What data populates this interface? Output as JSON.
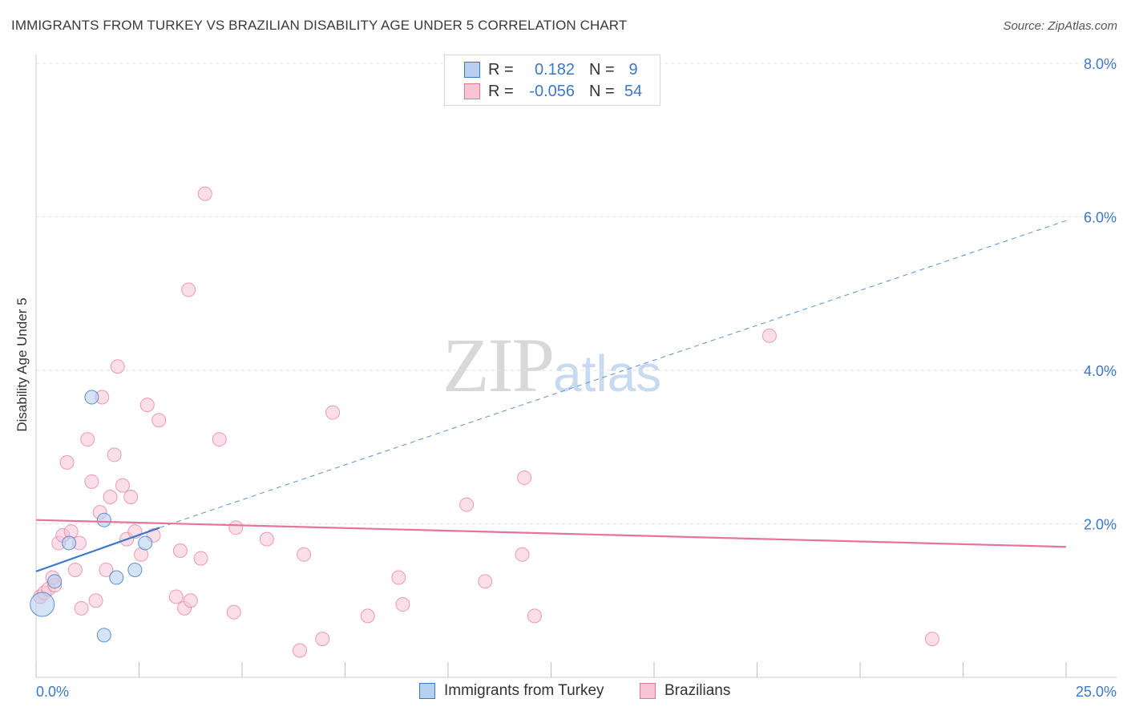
{
  "title": "IMMIGRANTS FROM TURKEY VS BRAZILIAN DISABILITY AGE UNDER 5 CORRELATION CHART",
  "source": "Source: ZipAtlas.com",
  "watermark": {
    "zip": "ZIP",
    "atlas": "atlas"
  },
  "colors": {
    "blue": "#3c78c8",
    "blue_fill": "#b8d0f0",
    "pink": "#e8739a",
    "pink_fill": "#f7c5d6",
    "tick_text": "#3c78c8"
  },
  "legend_top": {
    "rows": [
      {
        "r_label": "R =",
        "r_value": "0.182",
        "n_label": "N =",
        "n_value": "9"
      },
      {
        "r_label": "R =",
        "r_value": "-0.056",
        "n_label": "N =",
        "n_value": "54"
      }
    ]
  },
  "legend_bottom": {
    "series1": "Immigrants from Turkey",
    "series2": "Brazilians"
  },
  "chart_data": {
    "type": "scatter",
    "title": "IMMIGRANTS FROM TURKEY VS BRAZILIAN DISABILITY AGE UNDER 5 CORRELATION CHART",
    "xlabel": "",
    "ylabel": "Disability Age Under 5",
    "xlim": [
      0,
      25
    ],
    "ylim": [
      0,
      8
    ],
    "x_tick_labels": [
      "0.0%",
      "25.0%"
    ],
    "y_ticks": [
      2,
      4,
      6,
      8
    ],
    "y_tick_labels": [
      "2.0%",
      "4.0%",
      "6.0%",
      "8.0%"
    ],
    "grid": true,
    "series": [
      {
        "name": "Immigrants from Turkey",
        "color": "#3c78c8",
        "points": [
          [
            0.15,
            0.95
          ],
          [
            0.45,
            1.25
          ],
          [
            0.8,
            1.75
          ],
          [
            1.35,
            3.65
          ],
          [
            1.65,
            0.55
          ],
          [
            1.65,
            2.05
          ],
          [
            1.95,
            1.3
          ],
          [
            2.4,
            1.4
          ],
          [
            2.65,
            1.75
          ]
        ],
        "trend": {
          "x": [
            0,
            3.0
          ],
          "y": [
            1.38,
            1.95
          ],
          "extended": {
            "x": [
              3.0,
              25
            ],
            "y": [
              1.95,
              5.95
            ]
          }
        }
      },
      {
        "name": "Brazilians",
        "color": "#e8739a",
        "points": [
          [
            0.1,
            1.05
          ],
          [
            0.2,
            1.1
          ],
          [
            0.3,
            1.15
          ],
          [
            0.45,
            1.2
          ],
          [
            0.4,
            1.3
          ],
          [
            0.55,
            1.75
          ],
          [
            0.65,
            1.85
          ],
          [
            0.75,
            2.8
          ],
          [
            0.85,
            1.9
          ],
          [
            0.95,
            1.4
          ],
          [
            1.05,
            1.75
          ],
          [
            1.1,
            0.9
          ],
          [
            1.25,
            3.1
          ],
          [
            1.35,
            2.55
          ],
          [
            1.45,
            1.0
          ],
          [
            1.55,
            2.15
          ],
          [
            1.6,
            3.65
          ],
          [
            1.7,
            1.4
          ],
          [
            1.8,
            2.35
          ],
          [
            1.9,
            2.9
          ],
          [
            1.98,
            4.05
          ],
          [
            2.1,
            2.5
          ],
          [
            2.2,
            1.8
          ],
          [
            2.3,
            2.35
          ],
          [
            2.4,
            1.9
          ],
          [
            2.55,
            1.6
          ],
          [
            2.7,
            3.55
          ],
          [
            2.85,
            1.85
          ],
          [
            2.98,
            3.35
          ],
          [
            3.4,
            1.05
          ],
          [
            3.5,
            1.65
          ],
          [
            3.6,
            0.9
          ],
          [
            3.75,
            1.0
          ],
          [
            3.7,
            5.05
          ],
          [
            4.0,
            1.55
          ],
          [
            4.1,
            6.3
          ],
          [
            4.45,
            3.1
          ],
          [
            4.8,
            0.85
          ],
          [
            4.85,
            1.95
          ],
          [
            5.6,
            1.8
          ],
          [
            6.4,
            0.35
          ],
          [
            6.5,
            1.6
          ],
          [
            6.95,
            0.5
          ],
          [
            7.2,
            3.45
          ],
          [
            8.05,
            0.8
          ],
          [
            8.8,
            1.3
          ],
          [
            8.9,
            0.95
          ],
          [
            10.45,
            2.25
          ],
          [
            10.9,
            1.25
          ],
          [
            11.8,
            1.6
          ],
          [
            11.85,
            2.6
          ],
          [
            12.1,
            0.8
          ],
          [
            17.8,
            4.45
          ],
          [
            21.75,
            0.5
          ]
        ],
        "trend": {
          "x": [
            0,
            25
          ],
          "y": [
            2.05,
            1.7
          ]
        }
      }
    ]
  }
}
